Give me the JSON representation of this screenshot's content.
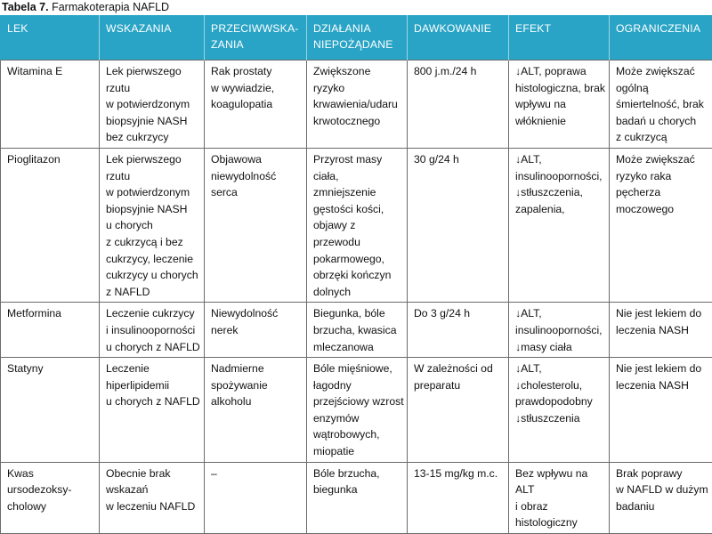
{
  "caption": {
    "label": "Tabela 7.",
    "title": "Farmakoterapia NAFLD"
  },
  "table": {
    "headers": [
      "LEK",
      "WSKAZANIA",
      "PRZECIWWSKA-\nZANIA",
      "DZIAŁANIA\nNIEPOŻĄDANE",
      "DAWKOWANIE",
      "EFEKT",
      "OGRANICZENIA"
    ],
    "rows": [
      [
        "Witamina E",
        "Lek pierwszego\nrzutu\nw potwierdzonym\nbiopsyjnie NASH\nbez cukrzycy",
        "Rak prostaty\nw wywiadzie,\nkoagulopatia",
        "Zwiększone ryzyko\nkrwawienia/udaru\nkrwotocznego",
        "800 j.m./24 h",
        "↓ALT, poprawa\nhistologiczna, brak\nwpływu na\nwłóknienie",
        "Może zwiększać\nogólną\nśmiertelność, brak\nbadań u chorych\nz cukrzycą"
      ],
      [
        "Pioglitazon",
        "Lek pierwszego\nrzutu\nw potwierdzonym\nbiopsyjnie NASH\nu chorych\nz cukrzycą i bez\ncukrzycy, leczenie\ncukrzycy u chorych\nz NAFLD",
        "Objawowa\nniewydolność\nserca",
        "Przyrost masy\nciała, zmniejszenie\ngęstości kości,\nobjawy z przewodu\npokarmowego,\nobrzęki kończyn\ndolnych",
        "30 g/24 h",
        "↓ALT,\ninsulinooporności,\n↓stłuszczenia,\nzapalenia,",
        "Może zwiększać\nryzyko raka\npęcherza\nmoczowego"
      ],
      [
        "Metformina",
        "Leczenie cukrzycy\ni insulinooporności\nu chorych z NAFLD",
        "Niewydolność\nnerek",
        "Biegunka, bóle\nbrzucha, kwasica\nmleczanowa",
        "Do 3 g/24 h",
        "↓ALT,\ninsulinooporności,\n↓masy ciała",
        "Nie jest lekiem do\nleczenia NASH"
      ],
      [
        "Statyny",
        "Leczenie\nhiperlipidemii\nu chorych z NAFLD",
        "Nadmierne\nspożywanie\nalkoholu",
        "Bóle mięśniowe,\nłagodny\nprzejściowy wzrost\nenzymów\nwątrobowych,\nmiopatie",
        "W zależności od\npreparatu",
        "↓ALT,\n↓cholesterolu,\nprawdopodobny\n↓stłuszczenia",
        "Nie jest lekiem do\nleczenia NASH"
      ],
      [
        "Kwas ursodezoksy-\ncholowy",
        "Obecnie brak\nwskazań\nw leczeniu NAFLD",
        "–",
        "Bóle brzucha,\nbiegunka",
        "13-15 mg/kg m.c.",
        "Bez wpływu na ALT\ni obraz\nhistologiczny",
        "Brak poprawy\nw NAFLD w dużym\nbadaniu"
      ]
    ]
  }
}
